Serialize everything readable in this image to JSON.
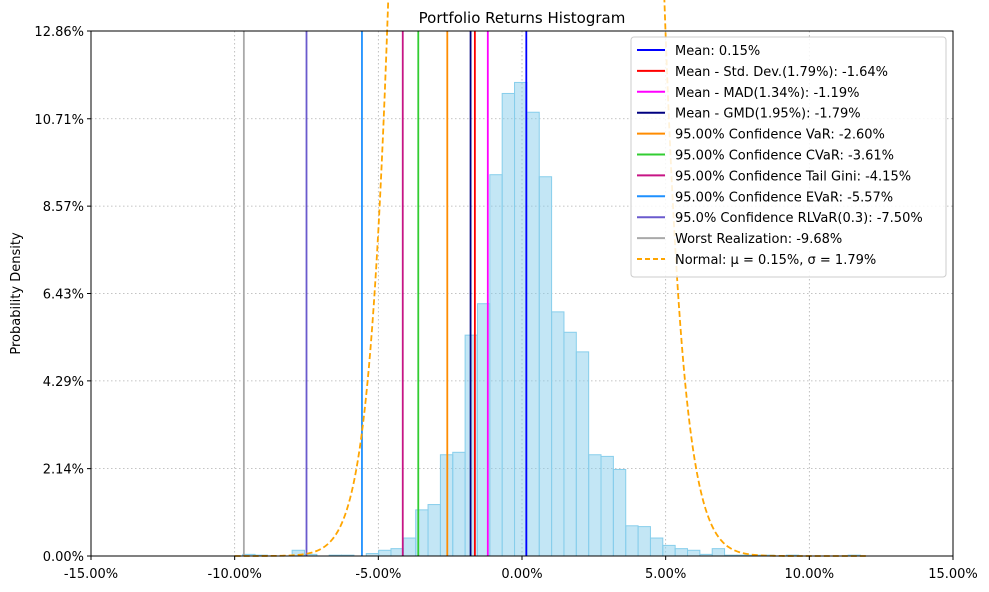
{
  "chart_data": {
    "type": "histogram",
    "title": "Portfolio Returns Histogram",
    "xlabel": "",
    "ylabel": "Probability Density",
    "xlim": [
      -0.15,
      0.15
    ],
    "ylim": [
      0,
      0.1286
    ],
    "xticks": [
      -0.15,
      -0.1,
      -0.05,
      0.0,
      0.05,
      0.1,
      0.15
    ],
    "xtick_labels": [
      "-15.00%",
      "-10.00%",
      "-5.00%",
      "0.00%",
      "5.00%",
      "10.00%",
      "15.00%"
    ],
    "yticks": [
      0,
      0.0214,
      0.0429,
      0.0643,
      0.0857,
      0.1071,
      0.1286
    ],
    "ytick_labels": [
      "0.00%",
      "2.14%",
      "4.29%",
      "6.43%",
      "8.57%",
      "10.71%",
      "12.86%"
    ],
    "grid": true,
    "legend_position": "top-right",
    "bar_color": "#87ceeb",
    "bars": [
      {
        "x0": -0.0972,
        "x1": -0.0929,
        "h": 0.0004
      },
      {
        "x0": -0.0929,
        "x1": -0.0886,
        "h": 0.0002
      },
      {
        "x0": -0.08,
        "x1": -0.0757,
        "h": 0.0014
      },
      {
        "x0": -0.0757,
        "x1": -0.0714,
        "h": 0.0004
      },
      {
        "x0": -0.0671,
        "x1": -0.0628,
        "h": 0.0002
      },
      {
        "x0": -0.0628,
        "x1": -0.0585,
        "h": 0.0002
      },
      {
        "x0": -0.0542,
        "x1": -0.0499,
        "h": 0.0006
      },
      {
        "x0": -0.0499,
        "x1": -0.0456,
        "h": 0.0014
      },
      {
        "x0": -0.0456,
        "x1": -0.0413,
        "h": 0.0018
      },
      {
        "x0": -0.0413,
        "x1": -0.037,
        "h": 0.0044
      },
      {
        "x0": -0.037,
        "x1": -0.0327,
        "h": 0.0113
      },
      {
        "x0": -0.0327,
        "x1": -0.0284,
        "h": 0.0126
      },
      {
        "x0": -0.0284,
        "x1": -0.0241,
        "h": 0.0248
      },
      {
        "x0": -0.0241,
        "x1": -0.0198,
        "h": 0.0254
      },
      {
        "x0": -0.0198,
        "x1": -0.0155,
        "h": 0.0541
      },
      {
        "x0": -0.0155,
        "x1": -0.0112,
        "h": 0.0618
      },
      {
        "x0": -0.0112,
        "x1": -0.0069,
        "h": 0.0934
      },
      {
        "x0": -0.0069,
        "x1": -0.0026,
        "h": 0.1133
      },
      {
        "x0": -0.0026,
        "x1": 0.0017,
        "h": 0.116
      },
      {
        "x0": 0.0017,
        "x1": 0.006,
        "h": 0.1087
      },
      {
        "x0": 0.006,
        "x1": 0.0103,
        "h": 0.0929
      },
      {
        "x0": 0.0103,
        "x1": 0.0146,
        "h": 0.0598
      },
      {
        "x0": 0.0146,
        "x1": 0.0189,
        "h": 0.0548
      },
      {
        "x0": 0.0189,
        "x1": 0.0232,
        "h": 0.05
      },
      {
        "x0": 0.0232,
        "x1": 0.0275,
        "h": 0.0248
      },
      {
        "x0": 0.0275,
        "x1": 0.0318,
        "h": 0.0244
      },
      {
        "x0": 0.0318,
        "x1": 0.0361,
        "h": 0.0212
      },
      {
        "x0": 0.0361,
        "x1": 0.0404,
        "h": 0.0074
      },
      {
        "x0": 0.0404,
        "x1": 0.0447,
        "h": 0.0072
      },
      {
        "x0": 0.0447,
        "x1": 0.049,
        "h": 0.0044
      },
      {
        "x0": 0.049,
        "x1": 0.0533,
        "h": 0.0026
      },
      {
        "x0": 0.0533,
        "x1": 0.0576,
        "h": 0.0018
      },
      {
        "x0": 0.0576,
        "x1": 0.0619,
        "h": 0.0014
      },
      {
        "x0": 0.0619,
        "x1": 0.0662,
        "h": 0.0004
      },
      {
        "x0": 0.0662,
        "x1": 0.0705,
        "h": 0.0018
      },
      {
        "x0": 0.0705,
        "x1": 0.0748,
        "h": 0.0002
      },
      {
        "x0": 0.0748,
        "x1": 0.0791,
        "h": 0.0002
      },
      {
        "x0": 0.0791,
        "x1": 0.0834,
        "h": 0.0002
      },
      {
        "x0": 0.0834,
        "x1": 0.0877,
        "h": 0.0002
      },
      {
        "x0": 0.092,
        "x1": 0.0963,
        "h": 0.0002
      },
      {
        "x0": 0.1135,
        "x1": 0.1178,
        "h": 0.0002
      }
    ],
    "vlines": [
      {
        "x": 0.0015,
        "color": "#0000ff",
        "label": "Mean: 0.15%"
      },
      {
        "x": -0.0164,
        "color": "#ff0000",
        "label": "Mean - Std. Dev.(1.79%): -1.64%"
      },
      {
        "x": -0.0119,
        "color": "#ff00ff",
        "label": "Mean - MAD(1.34%): -1.19%"
      },
      {
        "x": -0.0179,
        "color": "#000080",
        "label": "Mean - GMD(1.95%): -1.79%"
      },
      {
        "x": -0.026,
        "color": "#ff8c00",
        "label": "95.00% Confidence VaR: -2.60%"
      },
      {
        "x": -0.0361,
        "color": "#32cd32",
        "label": "95.00% Confidence CVaR: -3.61%"
      },
      {
        "x": -0.0415,
        "color": "#c71585",
        "label": "95.00% Confidence Tail Gini: -4.15%"
      },
      {
        "x": -0.0557,
        "color": "#1e90ff",
        "label": "95.00% Confidence EVaR: -5.57%"
      },
      {
        "x": -0.075,
        "color": "#6a5acd",
        "label": "95.0% Confidence RLVaR(0.3): -7.50%"
      },
      {
        "x": -0.0968,
        "color": "#a9a9a9",
        "label": "Worst Realization: -9.68%"
      }
    ],
    "normal": {
      "mu": 0.0015,
      "sigma": 0.0179,
      "color": "#ffa500",
      "label_prefix": "Normal: ",
      "label_math": "μ = 0.15%, σ = 1.79%"
    }
  }
}
